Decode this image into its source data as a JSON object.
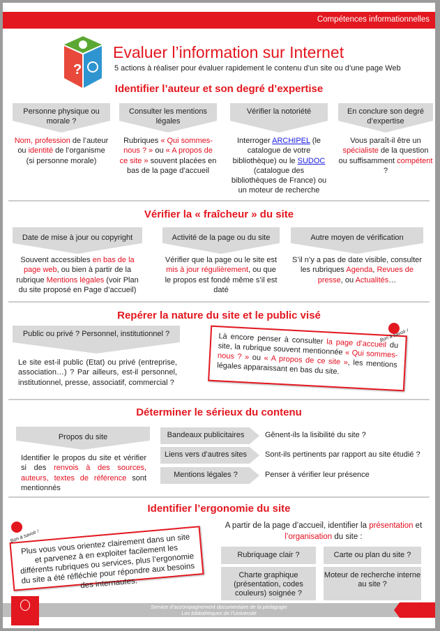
{
  "header": {
    "banner": "Compétences informationnelles",
    "title": "Evaluer l’information sur Internet",
    "subtitle": "5 actions à réaliser pour évaluer rapidement le contenu d’un site ou d’une page Web"
  },
  "colors": {
    "accent": "#e3171f",
    "box": "#d9d9d9",
    "link": "#1a1ae0"
  },
  "s1": {
    "heading": "Identifier l’auteur et son degré d’expertise",
    "cols": [
      {
        "title": "Personne physique ou morale ?",
        "body": [
          {
            "t": "Nom, profession",
            "r": 1
          },
          {
            "t": " de l’auteur ou "
          },
          {
            "t": "identité",
            "r": 1
          },
          {
            "t": " de l’organisme (si personne morale)"
          }
        ]
      },
      {
        "title": "Consulter les mentions légales",
        "body": [
          {
            "t": "Rubriques "
          },
          {
            "t": "« Qui sommes-nous ? »",
            "r": 1
          },
          {
            "t": " ou "
          },
          {
            "t": "« A propos de ce site »",
            "r": 1
          },
          {
            "t": " souvent placées en bas de la page d’accueil"
          }
        ]
      },
      {
        "title": "Vérifier la notoriété",
        "body": [
          {
            "t": "Interroger "
          },
          {
            "t": "ARCHIPEL",
            "l": 1
          },
          {
            "t": " (le catalogue de votre bibliothèque) ou le "
          },
          {
            "t": "SUDOC",
            "l": 1
          },
          {
            "t": " (catalogue des bibliothèques de France) ou un moteur de recherche"
          }
        ]
      },
      {
        "title": "En conclure son degré d’expertise",
        "body": [
          {
            "t": "Vous paraît-il être un "
          },
          {
            "t": "spécialiste",
            "r": 1
          },
          {
            "t": " de la question ou suffisamment "
          },
          {
            "t": "compétent",
            "r": 1
          },
          {
            "t": " ?"
          }
        ]
      }
    ]
  },
  "s2": {
    "heading": "Vérifier la « fraîcheur » du site",
    "cols": [
      {
        "title": "Date de mise à jour ou copyright",
        "body": [
          {
            "t": "Souvent accessibles "
          },
          {
            "t": "en bas de la page web",
            "r": 1
          },
          {
            "t": ", ou bien à partir de la rubrique "
          },
          {
            "t": "Mentions légales",
            "r": 1
          },
          {
            "t": " (voir Plan du site proposé en Page d’accueil)"
          }
        ]
      },
      {
        "title": "Activité de la page ou du site",
        "body": [
          {
            "t": "Vérifier que la page ou le site est "
          },
          {
            "t": "mis à jour régulièrement",
            "r": 1
          },
          {
            "t": ", ou que le propos est fondé même s’il est daté"
          }
        ]
      },
      {
        "title": "Autre moyen de vérification",
        "body": [
          {
            "t": "S’il n’y a pas de date visible, consulter les rubriques "
          },
          {
            "t": "Agenda",
            "r": 1
          },
          {
            "t": ", "
          },
          {
            "t": "Revues de presse",
            "r": 1
          },
          {
            "t": ", ou "
          },
          {
            "t": "Actualités",
            "r": 1
          },
          {
            "t": "…"
          }
        ]
      }
    ]
  },
  "s3": {
    "heading": "Repérer la nature du site et le public visé",
    "box_title": "Public ou privé ? Personnel, institutionnel ?",
    "body": [
      {
        "t": "Le site est-il public (Etat) ou privé (entreprise, association…) ? Par ailleurs, est-il personnel, institutionnel, presse, associatif, commercial ?"
      }
    ],
    "note": [
      {
        "t": "Là encore penser à consulter "
      },
      {
        "t": "la page d’accueil",
        "r": 1
      },
      {
        "t": " du site, la rubrique souvent mentionnée "
      },
      {
        "t": "« Qui sommes-nous ? »",
        "r": 1
      },
      {
        "t": " ou "
      },
      {
        "t": "« A propos de ce site »",
        "r": 1
      },
      {
        "t": ", les mentions légales apparaissant en bas du site."
      }
    ],
    "sticker": "Bon à savoir !"
  },
  "s4": {
    "heading": "Déterminer le sérieux du contenu",
    "box_title": "Propos du site",
    "body": [
      {
        "t": "Identifier le propos du site et vérifier si des "
      },
      {
        "t": "renvois à des sources, auteurs, textes de référence",
        "r": 1
      },
      {
        "t": " sont mentionnés"
      }
    ],
    "rows": [
      {
        "label": "Bandeaux publicitaires",
        "text": "Gênent-ils la lisibilité du site ?"
      },
      {
        "label": "Liens vers d’autres sites",
        "text": "Sont-ils pertinents par rapport au site étudié ?"
      },
      {
        "label": "Mentions légales ?",
        "text": "Penser à vérifier leur présence"
      }
    ]
  },
  "s5": {
    "heading": "Identifier l’ergonomie du site",
    "note": [
      {
        "t": "Plus vous vous orientez clairement dans un site et parvenez à en exploiter facilement les différents rubriques ou services, plus l’ergonomie du site a été réfléchie pour répondre aux besoins des internautes."
      }
    ],
    "sticker": "Bon à savoir !",
    "intro": [
      {
        "t": "A partir de la page d’accueil, identifier la "
      },
      {
        "t": "présentation",
        "r": 1
      },
      {
        "t": " et "
      },
      {
        "t": "l’organisation",
        "r": 1
      },
      {
        "t": " du site :"
      }
    ],
    "boxes": [
      "Rubriquage clair ?",
      "Carte ou plan du site ?",
      "Charte graphique (présentation, codes couleurs) soignée ?",
      "Moteur de recherche interne au site ?"
    ]
  },
  "footer": {
    "line1": "Service d’accompagnement documentaire de la pédagogie",
    "line2": "Les bibliothèques de l’Université",
    "logo_text": "UNIVERSITÉ TOULOUSE 1 CAPITOLE"
  }
}
